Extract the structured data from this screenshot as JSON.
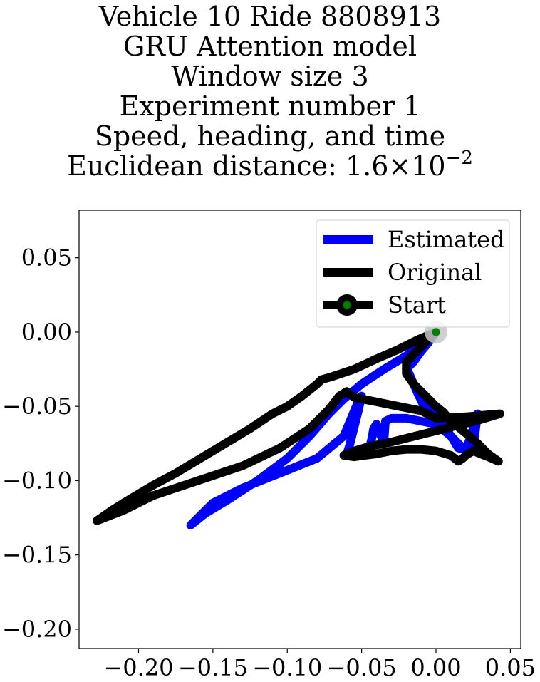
{
  "chart_data": {
    "type": "line",
    "title_lines": [
      "Vehicle 10 Ride 8808913",
      "GRU Attention model",
      "Window size 3",
      "Experiment number 1",
      "Speed, heading, and time"
    ],
    "distance_prefix": "Euclidean distance: ",
    "distance_mantissa": "1.6",
    "distance_times": "×",
    "distance_base": "10",
    "distance_exponent": "−2",
    "xlabel": "",
    "ylabel": "",
    "xlim": [
      -0.24,
      0.057
    ],
    "ylim": [
      -0.213,
      0.082
    ],
    "xticks": [
      -0.2,
      -0.15,
      -0.1,
      -0.05,
      0.0,
      0.05
    ],
    "xtick_labels": [
      "−0.20",
      "−0.15",
      "−0.10",
      "−0.05",
      "0.00",
      "0.05"
    ],
    "yticks": [
      0.05,
      0.0,
      -0.05,
      -0.1,
      -0.15,
      -0.2
    ],
    "ytick_labels": [
      "0.05",
      "0.00",
      "−0.05",
      "−0.10",
      "−0.15",
      "−0.20"
    ],
    "grid": false,
    "legend_position": "top-right",
    "legend": [
      {
        "label": "Estimated",
        "color": "#0000ff"
      },
      {
        "label": "Original",
        "color": "#000000"
      },
      {
        "label": "Start",
        "color": "#000000",
        "marker_color": "#008000"
      }
    ],
    "series": [
      {
        "name": "Estimated",
        "color": "#0000ff",
        "x": [
          0.0,
          -0.01,
          -0.02,
          -0.035,
          -0.05,
          -0.062,
          -0.072,
          -0.085,
          -0.1,
          -0.12,
          -0.14,
          -0.155,
          -0.165,
          -0.16,
          -0.15,
          -0.13,
          -0.105,
          -0.08,
          -0.062,
          -0.057,
          -0.052,
          -0.05,
          -0.052,
          -0.055,
          -0.058,
          -0.06,
          -0.055,
          -0.045,
          -0.043,
          -0.042,
          -0.04,
          -0.038,
          -0.035,
          -0.034,
          -0.03,
          -0.02,
          -0.01,
          0.0,
          0.01,
          0.02,
          0.025,
          0.028,
          0.026,
          0.022,
          0.015,
          0.01,
          0.005,
          0.0,
          -0.008,
          -0.012,
          -0.015,
          -0.018,
          -0.02,
          -0.015,
          -0.01,
          -0.005,
          0.0
        ],
        "y": [
          0.0,
          -0.008,
          -0.016,
          -0.025,
          -0.035,
          -0.045,
          -0.055,
          -0.07,
          -0.085,
          -0.1,
          -0.113,
          -0.122,
          -0.13,
          -0.125,
          -0.115,
          -0.105,
          -0.095,
          -0.085,
          -0.07,
          -0.058,
          -0.046,
          -0.043,
          -0.052,
          -0.064,
          -0.076,
          -0.082,
          -0.081,
          -0.079,
          -0.071,
          -0.065,
          -0.062,
          -0.068,
          -0.074,
          -0.06,
          -0.058,
          -0.058,
          -0.06,
          -0.062,
          -0.07,
          -0.08,
          -0.065,
          -0.055,
          -0.07,
          -0.08,
          -0.078,
          -0.07,
          -0.062,
          -0.056,
          -0.05,
          -0.042,
          -0.035,
          -0.028,
          -0.025,
          -0.02,
          -0.013,
          -0.007,
          0.0
        ]
      },
      {
        "name": "Original",
        "color": "#000000",
        "x": [
          0.0,
          -0.012,
          -0.026,
          -0.04,
          -0.055,
          -0.07,
          -0.077,
          -0.08,
          -0.09,
          -0.1,
          -0.11,
          -0.125,
          -0.15,
          -0.175,
          -0.19,
          -0.2,
          -0.21,
          -0.218,
          -0.228,
          -0.21,
          -0.19,
          -0.16,
          -0.13,
          -0.105,
          -0.085,
          -0.072,
          -0.065,
          -0.06,
          -0.055,
          -0.04,
          -0.025,
          -0.01,
          0.0,
          0.02,
          0.043,
          0.03,
          0.01,
          -0.01,
          -0.03,
          -0.045,
          -0.055,
          -0.062,
          -0.055,
          -0.048,
          -0.04,
          -0.03,
          -0.02,
          -0.01,
          0.0,
          0.01,
          0.015,
          0.018,
          0.02,
          0.025,
          0.03,
          0.035,
          0.042,
          0.035,
          0.028,
          0.02,
          0.01,
          0.005,
          0.0,
          -0.005,
          -0.01,
          -0.015,
          -0.02,
          -0.02,
          -0.01,
          0.0
        ],
        "y": [
          0.0,
          -0.005,
          -0.012,
          -0.018,
          -0.025,
          -0.03,
          -0.032,
          -0.035,
          -0.043,
          -0.05,
          -0.055,
          -0.065,
          -0.08,
          -0.095,
          -0.103,
          -0.109,
          -0.115,
          -0.12,
          -0.127,
          -0.12,
          -0.11,
          -0.1,
          -0.09,
          -0.078,
          -0.065,
          -0.052,
          -0.043,
          -0.04,
          -0.044,
          -0.047,
          -0.05,
          -0.053,
          -0.058,
          -0.057,
          -0.055,
          -0.059,
          -0.064,
          -0.069,
          -0.074,
          -0.077,
          -0.08,
          -0.083,
          -0.084,
          -0.083,
          -0.082,
          -0.08,
          -0.079,
          -0.079,
          -0.08,
          -0.083,
          -0.087,
          -0.085,
          -0.083,
          -0.08,
          -0.082,
          -0.084,
          -0.087,
          -0.082,
          -0.075,
          -0.068,
          -0.06,
          -0.054,
          -0.05,
          -0.045,
          -0.04,
          -0.035,
          -0.028,
          -0.02,
          -0.01,
          0.0
        ]
      },
      {
        "name": "Start",
        "color": "#000000",
        "marker_color": "#008000",
        "x": [
          0.0
        ],
        "y": [
          0.0
        ]
      }
    ],
    "start_halo": {
      "x": 0.0,
      "y": 0.0,
      "color": "#c8c8c8"
    }
  }
}
